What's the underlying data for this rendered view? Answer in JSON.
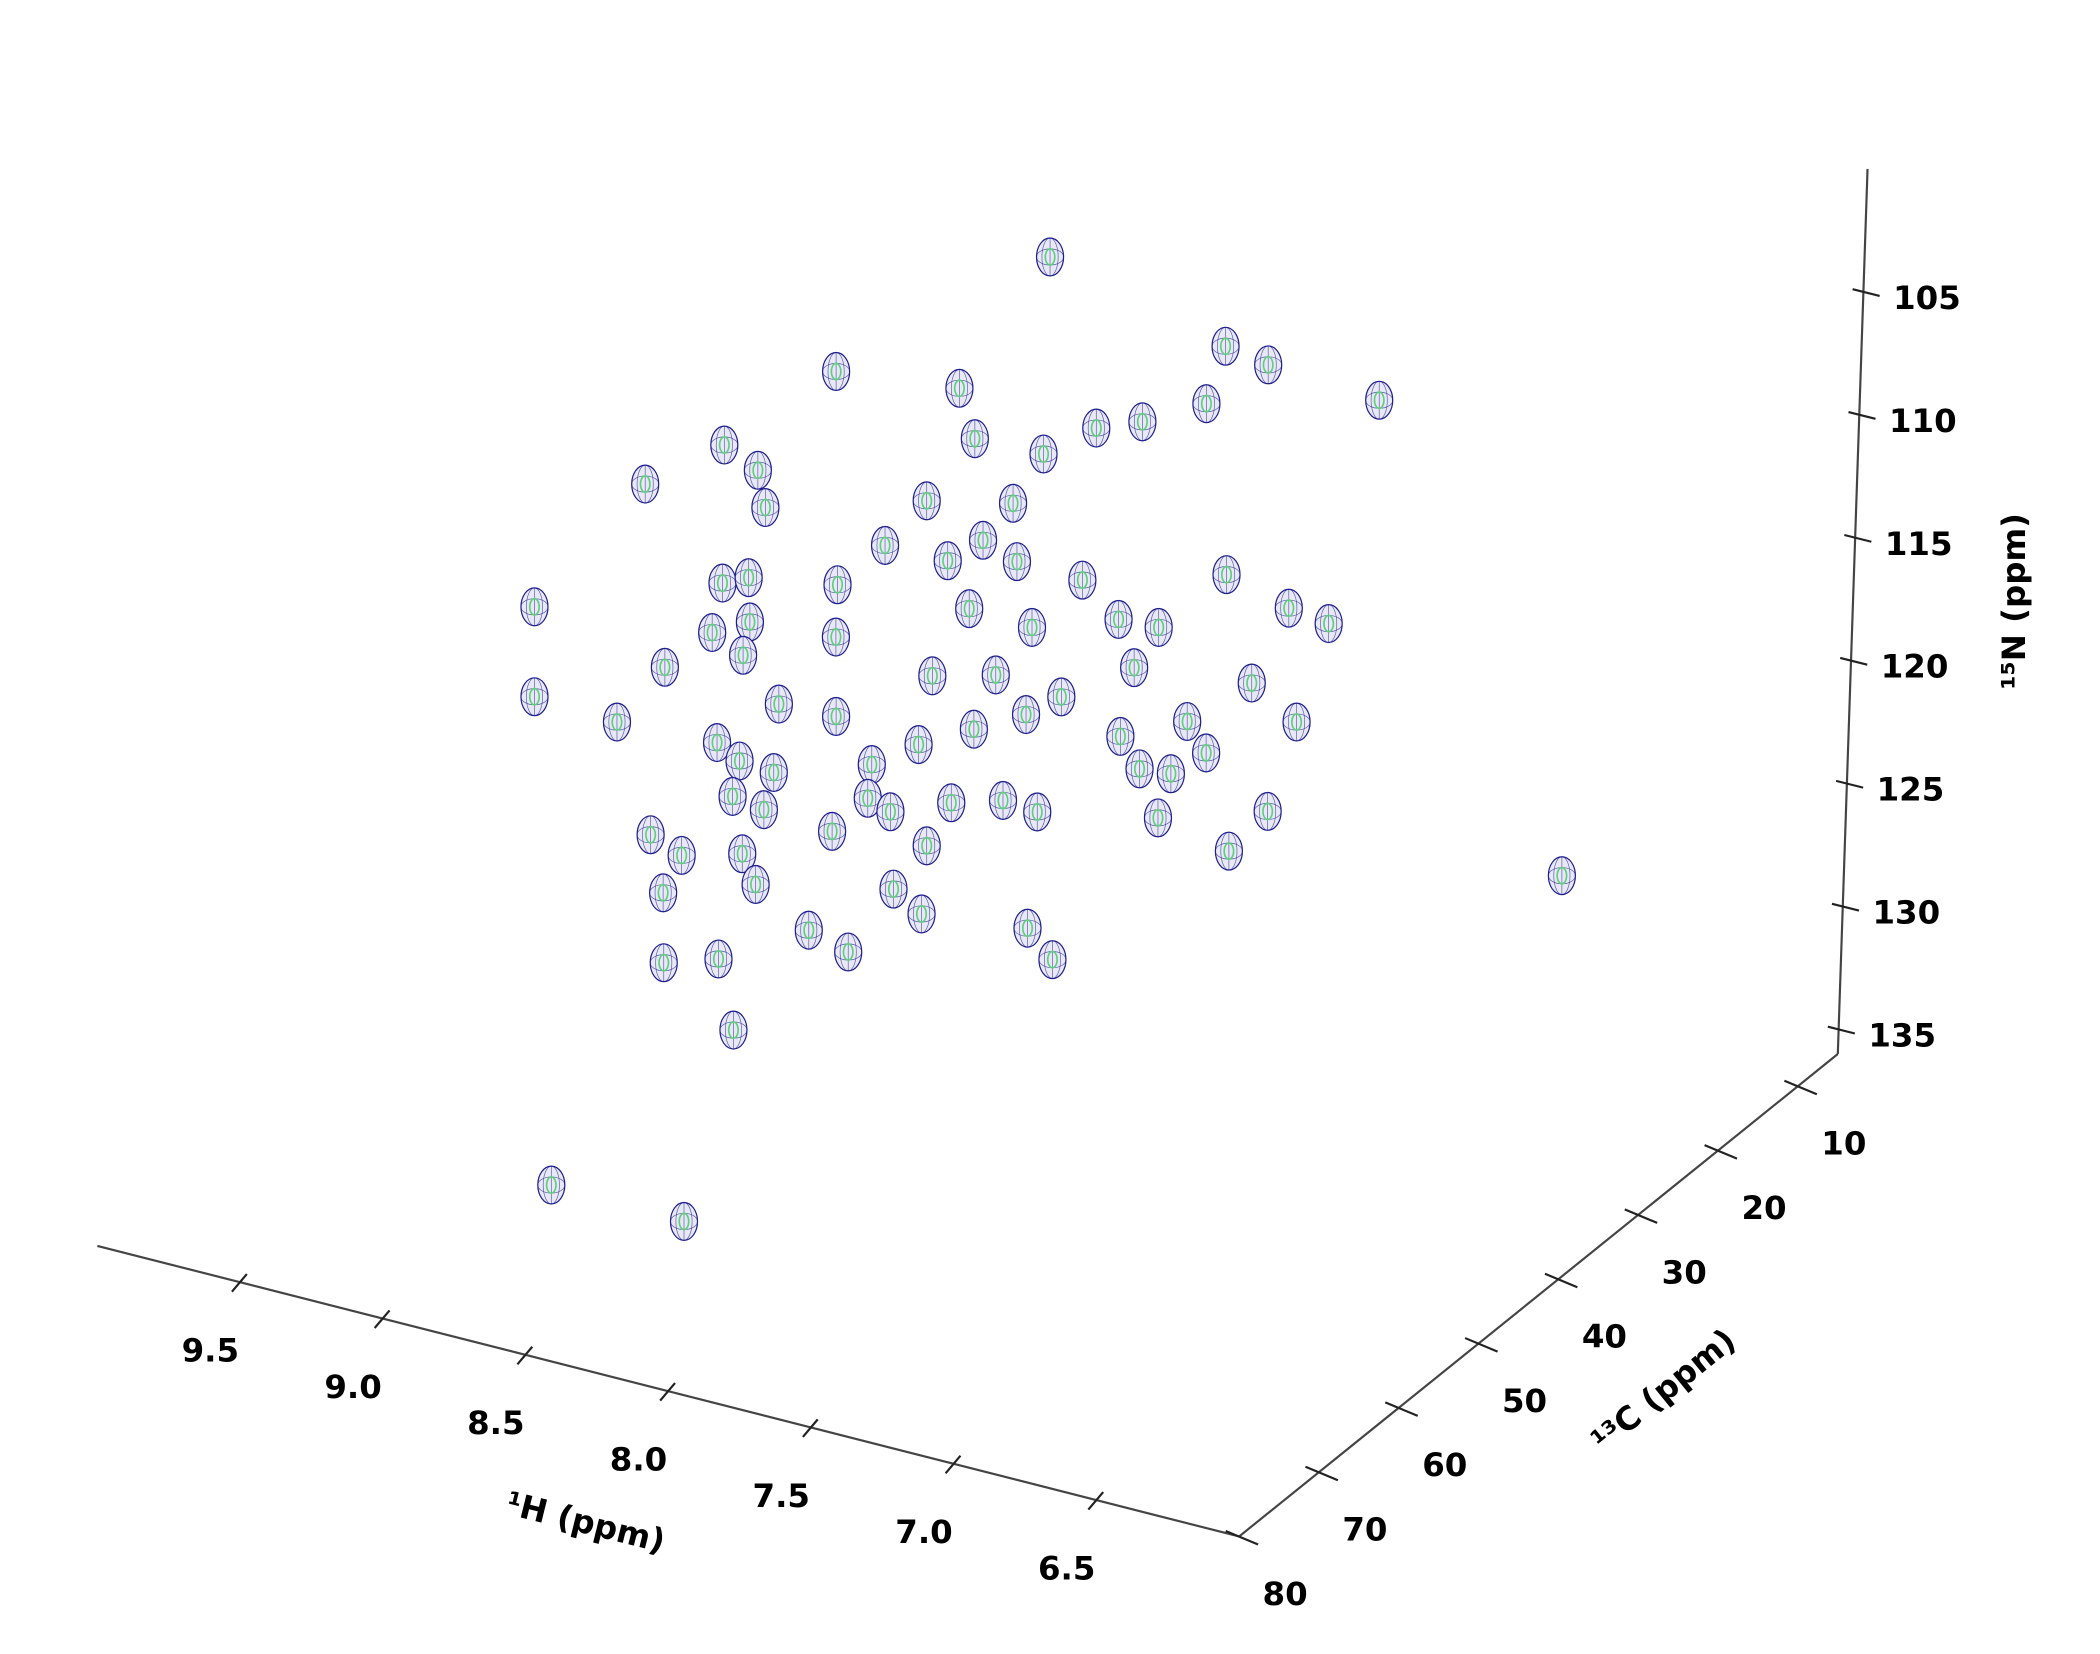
{
  "chart_data": {
    "type": "scatter3d",
    "xlabel": "¹H (ppm)",
    "ylabel": "¹³C (ppm)",
    "zlabel": "¹⁵N (ppm)",
    "xlim": [
      10,
      6
    ],
    "ylim": [
      80,
      5
    ],
    "zlim": [
      136,
      100
    ],
    "xticks": [
      9.5,
      {
        "value": 9,
        "label": "9.0"
      },
      8.5,
      {
        "value": 8,
        "label": "8.0"
      },
      7.5,
      {
        "value": 7,
        "label": "7.0"
      },
      6.5
    ],
    "yticks": [
      10,
      20,
      30,
      40,
      50,
      60,
      70,
      80
    ],
    "zticks": [
      105,
      110,
      115,
      120,
      125,
      130,
      135
    ],
    "color": "#1f1f8f",
    "core_color": "#5fd07a",
    "x": [
      8.02,
      8.48,
      7.78,
      7.4,
      6.98,
      6.86,
      8.26,
      7.75,
      7.3,
      7.68,
      7.19,
      8.59,
      9.01,
      9.13,
      8.44,
      8.42,
      7.85,
      8.02,
      8.34,
      7.95,
      7.56,
      8.72,
      8.85,
      8.49,
      9.77,
      7.99,
      7.5,
      7.87,
      7.47,
      7.06,
      7.37,
      6.88,
      6.47,
      9.02,
      8.88,
      8.18,
      9.31,
      8.77,
      9.22,
      9.47,
      8.64,
      8.17,
      8.38,
      7.89,
      7.39,
      7.68,
      7.0,
      6.57,
      9.12,
      8.77,
      8.38,
      8.58,
      8.15,
      7.69,
      8.05,
      7.45,
      6.95,
      7.42,
      8.79,
      8.41,
      8.59,
      8.24,
      7.76,
      8.12,
      7.73,
      7.11,
      7.54,
      7.31,
      6.66,
      9.34,
      8.96,
      8.48,
      8.71,
      8.11,
      6.79,
      6.17,
      9.02,
      8.43,
      8.49,
      8.12,
      8.24,
      8.64,
      8.82,
      8.74,
      8.02,
      7.66,
      8.49,
      8.7,
      8.1
    ],
    "y": [
      35,
      45,
      55,
      35,
      45,
      35,
      35,
      45,
      55,
      35,
      45,
      55,
      35,
      45,
      55,
      35,
      45,
      55,
      35,
      45,
      55,
      35,
      45,
      55,
      35,
      45,
      55,
      35,
      45,
      55,
      35,
      45,
      55,
      35,
      45,
      55,
      35,
      45,
      55,
      35,
      45,
      55,
      35,
      45,
      55,
      35,
      45,
      55,
      35,
      45,
      55,
      35,
      45,
      55,
      35,
      45,
      55,
      35,
      45,
      55,
      35,
      45,
      55,
      35,
      45,
      55,
      35,
      45,
      55,
      35,
      45,
      55,
      35,
      45,
      55,
      35,
      45,
      55,
      35,
      45,
      55,
      35,
      45,
      55,
      35,
      45,
      55,
      70,
      75
    ],
    "z": [
      101.7,
      105.1,
      101.1,
      103.5,
      100.4,
      104.1,
      109.8,
      106.3,
      101.3,
      107.4,
      102.6,
      105.8,
      113.3,
      111.6,
      107.9,
      112.8,
      108.6,
      108.2,
      115.0,
      110.4,
      107.5,
      117.1,
      114.8,
      110.9,
      121.1,
      113.3,
      110.0,
      114.4,
      112.2,
      108.7,
      112.7,
      110.0,
      106.8,
      119.5,
      116.9,
      112.4,
      122.2,
      117.5,
      117.9,
      124.9,
      119.1,
      115.6,
      119.8,
      115.7,
      112.5,
      117.4,
      113.4,
      111.1,
      124.7,
      121.8,
      118.5,
      124.0,
      119.3,
      114.7,
      120.4,
      116.9,
      112.2,
      120.1,
      123.3,
      120.1,
      125.4,
      122.3,
      117.9,
      124.1,
      120.8,
      114.6,
      121.3,
      119.8,
      115.0,
      129.1,
      126.2,
      122.1,
      127.1,
      123.3,
      117.0,
      121.4,
      127.9,
      123.2,
      128.8,
      126.1,
      124.5,
      131.8,
      130.0,
      127.3,
      129.0,
      126.6,
      129.3,
      132.3,
      130.7
    ]
  }
}
